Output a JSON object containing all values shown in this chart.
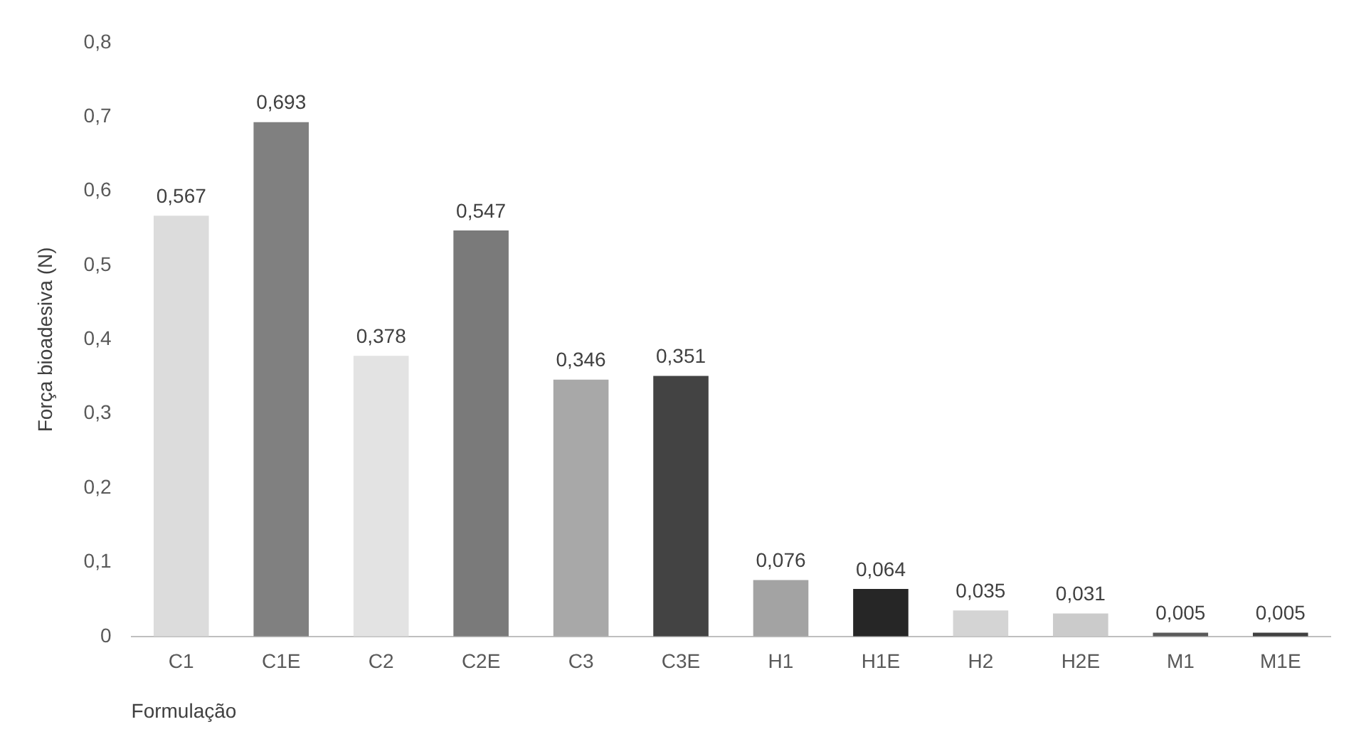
{
  "chart_data": {
    "type": "bar",
    "xlabel": "Formulação",
    "ylabel": "Força bioadesiva (N)",
    "categories": [
      "C1",
      "C1E",
      "C2",
      "C2E",
      "C3",
      "C3E",
      "H1",
      "H1E",
      "H2",
      "H2E",
      "M1",
      "M1E"
    ],
    "values": [
      0.567,
      0.693,
      0.378,
      0.547,
      0.346,
      0.351,
      0.076,
      0.064,
      0.035,
      0.031,
      0.005,
      0.005
    ],
    "colors": [
      "#dcdcdc",
      "#808080",
      "#e3e3e3",
      "#7a7a7a",
      "#a8a8a8",
      "#434343",
      "#a3a3a3",
      "#262626",
      "#d4d4d4",
      "#cbcbcb",
      "#5a5a5a",
      "#404040"
    ],
    "value_labels": [
      "0,567",
      "0,693",
      "0,378",
      "0,547",
      "0,346",
      "0,351",
      "0,076",
      "0,064",
      "0,035",
      "0,031",
      "0,005",
      "0,005"
    ],
    "ylim": [
      0,
      0.8
    ],
    "yticks": [
      {
        "value": 0,
        "label": "0"
      },
      {
        "value": 0.1,
        "label": "0,1"
      },
      {
        "value": 0.2,
        "label": "0,2"
      },
      {
        "value": 0.3,
        "label": "0,3"
      },
      {
        "value": 0.4,
        "label": "0,4"
      },
      {
        "value": 0.5,
        "label": "0,5"
      },
      {
        "value": 0.6,
        "label": "0,6"
      },
      {
        "value": 0.7,
        "label": "0,7"
      },
      {
        "value": 0.8,
        "label": "0,8"
      }
    ],
    "grid": false,
    "legend": false
  }
}
